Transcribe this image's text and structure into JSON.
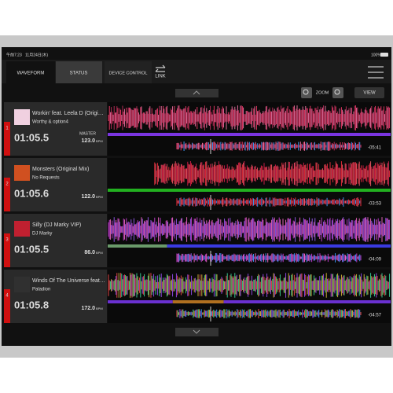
{
  "status_bar": {
    "time": "午前7:23",
    "date": "11月24日(木)",
    "battery": "100%"
  },
  "tabs": [
    "WAVEFORM",
    "STATUS",
    "DEVICE CONTROL"
  ],
  "link": "LINK",
  "toolbar": {
    "zoom": "ZOOM",
    "view": "VIEW"
  },
  "decks": [
    {
      "number": "1",
      "title": "Workin' feat. Leela D (Origi…",
      "artist": "Worthy & option4",
      "time": "01:05.5",
      "master": "MASTER",
      "bpm": "123.0",
      "bpm_unit": "BPM",
      "remaining": "-05:41"
    },
    {
      "number": "2",
      "title": "Monsters (Original Mix)",
      "artist": "No Requests",
      "time": "01:05.6",
      "bpm": "122.0",
      "bpm_unit": "BPM",
      "remaining": "-03:53"
    },
    {
      "number": "3",
      "title": "Silly (DJ Marky VIP)",
      "artist": "DJ Marky",
      "time": "01:05.5",
      "bpm": "86.0",
      "bpm_unit": "BPM",
      "remaining": "-04:09"
    },
    {
      "number": "4",
      "title": "Winds Of The Universe feat…",
      "artist": "Paladion",
      "time": "01:05.8",
      "bpm": "172.0",
      "bpm_unit": "BPM",
      "remaining": "-04:57"
    }
  ]
}
